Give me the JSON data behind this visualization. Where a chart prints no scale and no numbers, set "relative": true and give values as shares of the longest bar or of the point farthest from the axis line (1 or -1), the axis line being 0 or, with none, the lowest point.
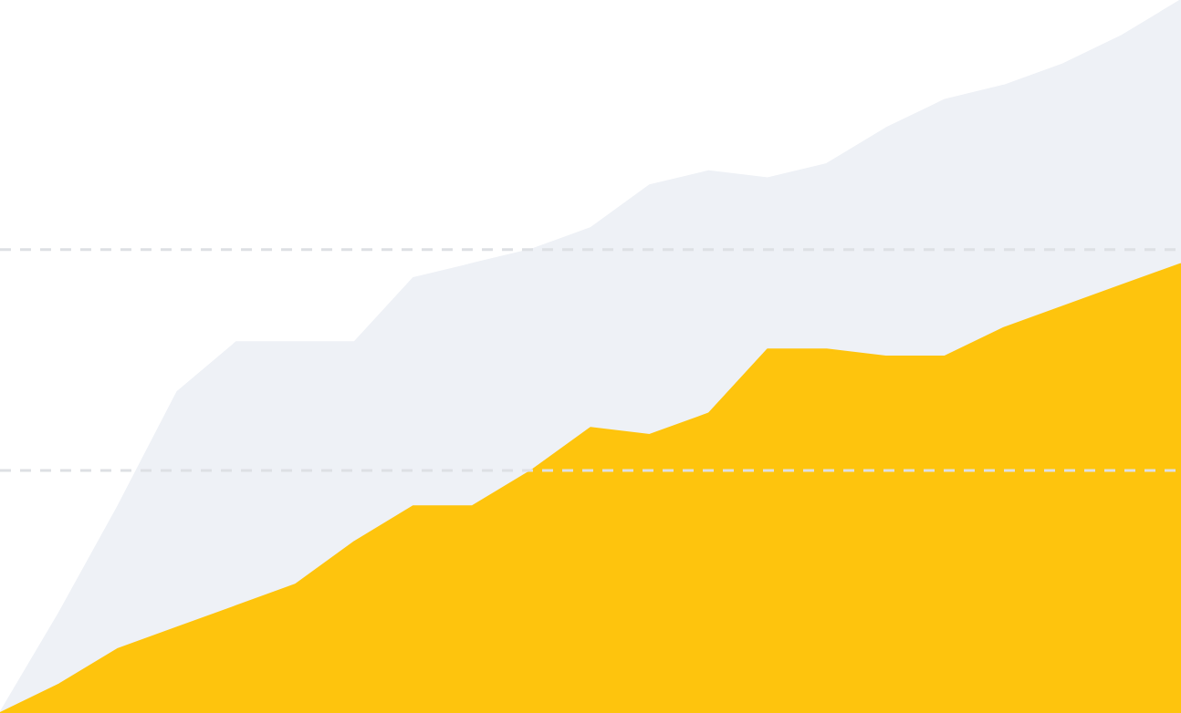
{
  "chart_data": {
    "type": "area",
    "relative": true,
    "ref_lines": [
      {
        "axis": "y",
        "value": 0.65,
        "color": "#dde0e4",
        "line_style": "dashed"
      },
      {
        "axis": "y",
        "value": 0.34,
        "color": "#dde0e4",
        "line_style": "dashed"
      }
    ],
    "categories": [
      null,
      null,
      null,
      null,
      null,
      null,
      null,
      null,
      null,
      null,
      null,
      null,
      null,
      null,
      null,
      null,
      null,
      null,
      null,
      null,
      null
    ],
    "series": [
      {
        "color": "#eef1f6",
        "values": [
          0,
          0.14,
          0.29,
          0.45,
          0.52,
          0.52,
          0.52,
          0.61,
          0.63,
          0.65,
          0.68,
          0.74,
          0.76,
          0.75,
          0.77,
          0.82,
          0.86,
          0.88,
          0.91,
          0.95,
          1.0
        ]
      },
      {
        "color": "#fec40d",
        "values": [
          0,
          0.04,
          0.09,
          0.12,
          0.15,
          0.18,
          0.24,
          0.29,
          0.29,
          0.34,
          0.4,
          0.39,
          0.42,
          0.51,
          0.51,
          0.5,
          0.5,
          0.54,
          0.57,
          0.6,
          0.63
        ]
      }
    ]
  }
}
